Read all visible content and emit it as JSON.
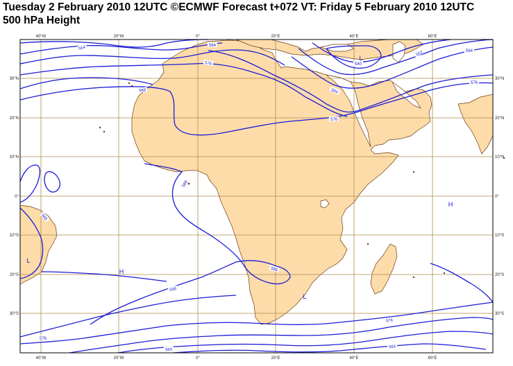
{
  "header": {
    "title": "Tuesday 2 February 2010 12UTC ©ECMWF Forecast t+072 VT: Friday 5 February 2010 12UTC",
    "subtitle": "500 hPa Height"
  },
  "map": {
    "colors": {
      "land": "#fddcaa",
      "coast": "#6b3a10",
      "contour": "#1a1ad6",
      "grid": "#b08a4a",
      "frame": "#000000"
    },
    "lon_ticks": [
      "40°W",
      "20°W",
      "0°",
      "20°E",
      "40°E",
      "60°E"
    ],
    "lat_ticks_left": [
      "30°N",
      "20°N",
      "10°N",
      "0°",
      "10°S",
      "20°S",
      "30°S"
    ],
    "lat_ticks_right": [
      "30°N",
      "20°N",
      "10°N",
      "0°",
      "10°S",
      "20°S",
      "30°S"
    ],
    "contour_labels": [
      "564",
      "564",
      "576",
      "588",
      "540",
      "552",
      "564",
      "564",
      "576",
      "576",
      "588",
      "588",
      "588",
      "588",
      "576",
      "564",
      "576",
      "564"
    ],
    "pressure_centers": [
      "L",
      "L",
      "H",
      "H",
      "L"
    ]
  }
}
